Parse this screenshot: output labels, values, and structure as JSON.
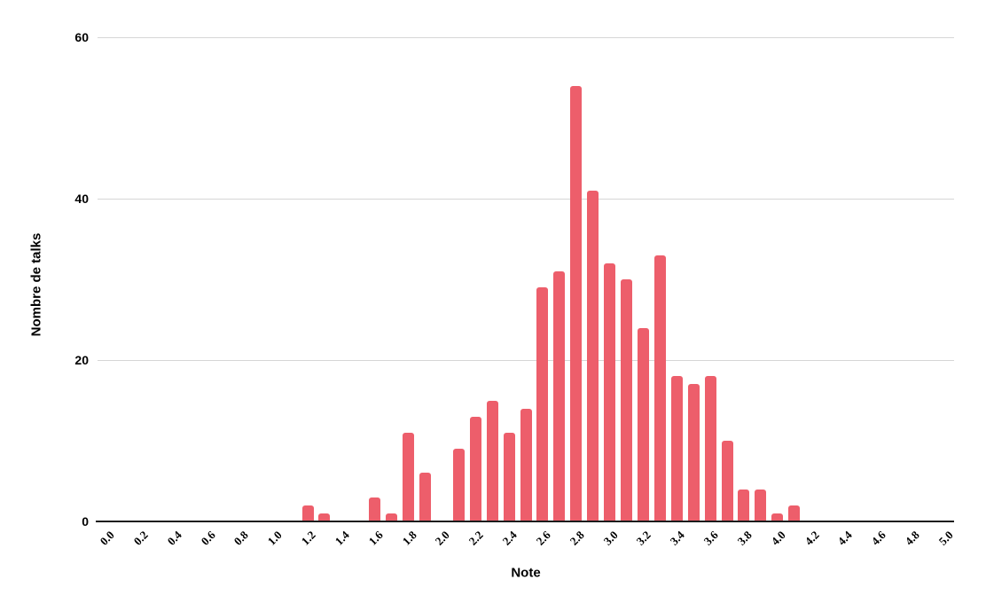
{
  "chart": {
    "x_axis_title": "Note",
    "y_axis_title": "Nombre de talks",
    "colors": {
      "bar": "#ed5e6b",
      "gridline": "#d6d6d6",
      "axis_line": "#1c1c1c",
      "text": "#000000",
      "background": "#ffffff"
    }
  },
  "chart_data": {
    "type": "bar",
    "title": "",
    "xlabel": "Note",
    "ylabel": "Nombre de talks",
    "x": [
      0.0,
      0.1,
      0.2,
      0.3,
      0.4,
      0.5,
      0.6,
      0.7,
      0.8,
      0.9,
      1.0,
      1.1,
      1.2,
      1.3,
      1.4,
      1.5,
      1.6,
      1.7,
      1.8,
      1.9,
      2.0,
      2.1,
      2.2,
      2.3,
      2.4,
      2.5,
      2.6,
      2.7,
      2.8,
      2.9,
      3.0,
      3.1,
      3.2,
      3.3,
      3.4,
      3.5,
      3.6,
      3.7,
      3.8,
      3.9,
      4.0,
      4.1,
      4.2,
      4.3,
      4.4,
      4.5,
      4.6,
      4.7,
      4.8,
      4.9,
      5.0
    ],
    "values": [
      0,
      0,
      0,
      0,
      0,
      0,
      0,
      0,
      0,
      0,
      0,
      0,
      2,
      1,
      0,
      0,
      3,
      1,
      11,
      6,
      0,
      9,
      13,
      15,
      11,
      14,
      29,
      31,
      54,
      41,
      32,
      30,
      24,
      33,
      18,
      17,
      18,
      10,
      4,
      4,
      1,
      2,
      0,
      0,
      0,
      0,
      0,
      0,
      0,
      0,
      0
    ],
    "x_tick_labels": [
      "0.0",
      "0.2",
      "0.4",
      "0.6",
      "0.8",
      "1.0",
      "1.2",
      "1.4",
      "1.6",
      "1.8",
      "2.0",
      "2.2",
      "2.4",
      "2.6",
      "2.8",
      "3.0",
      "3.2",
      "3.4",
      "3.6",
      "3.8",
      "4.0",
      "4.2",
      "4.4",
      "4.6",
      "4.8",
      "5.0"
    ],
    "y_ticks": [
      0,
      20,
      40,
      60
    ],
    "ylim": [
      0,
      60
    ],
    "xlim": [
      0.0,
      5.0
    ],
    "grid": "horizontal",
    "legend": false
  }
}
